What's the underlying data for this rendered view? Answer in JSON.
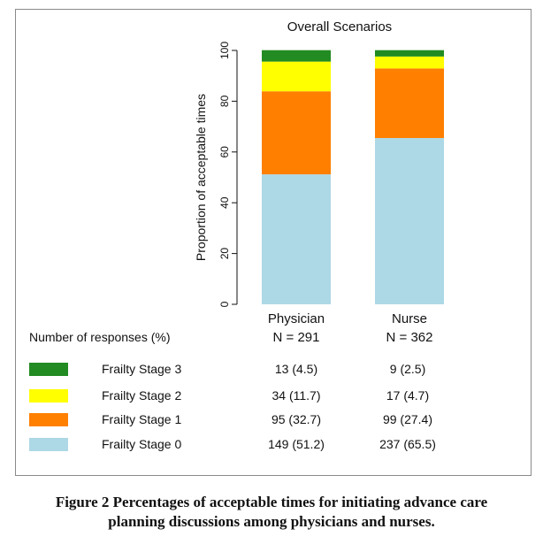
{
  "chart_data": {
    "type": "bar",
    "stacked": true,
    "title": "Overall Scenarios",
    "ylabel": "Proportion of acceptable times",
    "xlabel": "",
    "ylim": [
      0,
      100
    ],
    "yticks": [
      0,
      20,
      40,
      60,
      80,
      100
    ],
    "categories": [
      "Physician",
      "Nurse"
    ],
    "category_n": [
      "N = 291",
      "N = 362"
    ],
    "series": [
      {
        "name": "Frailty Stage 0",
        "color": "#add8e6",
        "values": [
          51.2,
          65.5
        ],
        "labels": [
          "149 (51.2)",
          "237 (65.5)"
        ]
      },
      {
        "name": "Frailty Stage 1",
        "color": "#ff7f00",
        "values": [
          32.7,
          27.4
        ],
        "labels": [
          "95 (32.7)",
          "99 (27.4)"
        ]
      },
      {
        "name": "Frailty Stage 2",
        "color": "#ffff00",
        "values": [
          11.7,
          4.7
        ],
        "labels": [
          "34 (11.7)",
          "17 (4.7)"
        ]
      },
      {
        "name": "Frailty Stage 3",
        "color": "#228b22",
        "values": [
          4.5,
          2.5
        ],
        "labels": [
          "13 (4.5)",
          "9 (2.5)"
        ]
      }
    ],
    "grid": false
  },
  "table": {
    "header": "Number of responses (%)"
  },
  "caption": {
    "line1": "Figure 2 Percentages of acceptable times for initiating advance care",
    "line2": "planning discussions among physicians and nurses."
  }
}
